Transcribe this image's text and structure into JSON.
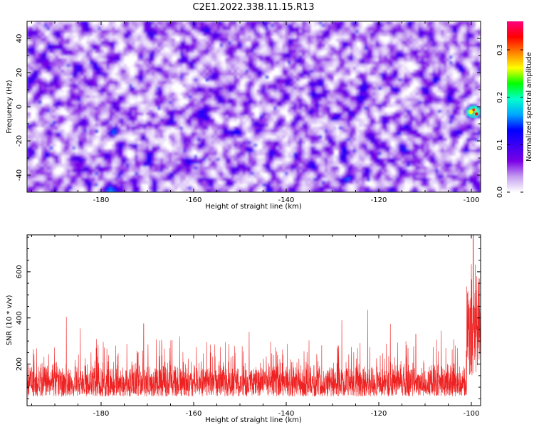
{
  "title": "C2E1.2022.338.11.15.R13",
  "chart_data": [
    {
      "type": "heatmap",
      "title": "",
      "xlabel": "Height of straight line (km)",
      "ylabel": "Frequency (Hz)",
      "xlim": [
        -196,
        -98
      ],
      "ylim": [
        -50,
        50
      ],
      "xticks": [
        -180,
        -160,
        -140,
        -120,
        -100
      ],
      "yticks": [
        -40,
        -20,
        0,
        20,
        40
      ],
      "colorbar": {
        "label": "Normalized spectral amplitude",
        "range": [
          0,
          0.36
        ],
        "ticks": [
          0.0,
          0.1,
          0.2,
          0.3
        ],
        "tick_labels": [
          "0.0",
          "0.1",
          "0.2",
          "0.3"
        ],
        "colormap": [
          "#ffffff",
          "#c49cf0",
          "#7a00e6",
          "#3d00f2",
          "#0000ff",
          "#00a8ff",
          "#00ffcc",
          "#00ff00",
          "#ffff00",
          "#ff8000",
          "#ff0000",
          "#ff0080"
        ]
      },
      "hotspot": {
        "x": -99.5,
        "y": -3,
        "value": 0.36
      },
      "background_level": 0.05,
      "grid": false
    },
    {
      "type": "line",
      "title": "",
      "xlabel": "Height of straight line (km)",
      "ylabel": "SNR (10 * v/v)",
      "xlim": [
        -196,
        -98
      ],
      "ylim": [
        20,
        760
      ],
      "xticks": [
        -180,
        -160,
        -140,
        -120,
        -100
      ],
      "yticks": [
        200,
        400,
        600
      ],
      "series": [
        {
          "color": "#ee2222",
          "typical_range": [
            60,
            220
          ],
          "spikes": [
            {
              "x": -187.5,
              "y": 405
            },
            {
              "x": -184.5,
              "y": 355
            },
            {
              "x": -170.8,
              "y": 375
            },
            {
              "x": -163.0,
              "y": 320
            },
            {
              "x": -148.0,
              "y": 340
            },
            {
              "x": -128.0,
              "y": 390
            },
            {
              "x": -122.4,
              "y": 435
            },
            {
              "x": -117.5,
              "y": 375
            },
            {
              "x": -112.0,
              "y": 330
            },
            {
              "x": -106.5,
              "y": 345
            }
          ],
          "rise_start": -101.0,
          "peak": {
            "x": -99.6,
            "y": 760
          },
          "tail_range": [
            150,
            520
          ]
        }
      ],
      "grid": false
    }
  ]
}
